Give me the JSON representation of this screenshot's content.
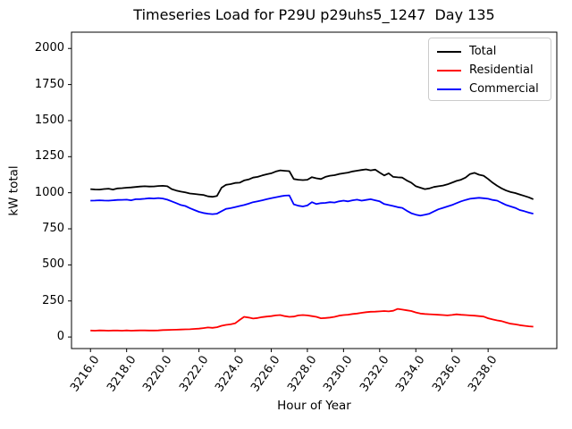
{
  "chart_data": {
    "type": "line",
    "title": "Timeseries Load for P29U p29uhs5_1247  Day 135",
    "xlabel": "Hour of Year",
    "ylabel": "kW total",
    "x_start": 3216.0,
    "x_step": 0.25,
    "xlim": [
      3214.95,
      3241.8
    ],
    "ylim": [
      -80,
      2113
    ],
    "xticks": [
      3216.0,
      3218.0,
      3220.0,
      3222.0,
      3224.0,
      3226.0,
      3228.0,
      3230.0,
      3232.0,
      3234.0,
      3236.0,
      3238.0
    ],
    "yticks": [
      0,
      250,
      500,
      750,
      1000,
      1250,
      1500,
      1750,
      2000
    ],
    "grid": false,
    "legend_position": "upper right",
    "series": [
      {
        "name": "Total",
        "color": "#000000",
        "values": [
          1025,
          1023,
          1022,
          1026,
          1028,
          1022,
          1030,
          1032,
          1035,
          1037,
          1040,
          1043,
          1045,
          1043,
          1044,
          1047,
          1048,
          1045,
          1025,
          1015,
          1008,
          1002,
          995,
          992,
          988,
          985,
          975,
          972,
          978,
          1035,
          1055,
          1060,
          1068,
          1070,
          1085,
          1092,
          1105,
          1110,
          1120,
          1128,
          1135,
          1147,
          1155,
          1152,
          1150,
          1095,
          1090,
          1088,
          1090,
          1108,
          1100,
          1095,
          1110,
          1118,
          1122,
          1130,
          1135,
          1140,
          1148,
          1153,
          1158,
          1162,
          1155,
          1160,
          1140,
          1120,
          1135,
          1110,
          1107,
          1105,
          1085,
          1070,
          1045,
          1035,
          1025,
          1030,
          1040,
          1045,
          1050,
          1058,
          1070,
          1082,
          1090,
          1105,
          1130,
          1138,
          1125,
          1118,
          1095,
          1070,
          1048,
          1030,
          1015,
          1005,
          998,
          988,
          978,
          968,
          955
        ]
      },
      {
        "name": "Residential",
        "color": "#ff0000",
        "values": [
          45,
          44,
          46,
          45,
          44,
          45,
          45,
          44,
          46,
          44,
          45,
          46,
          46,
          45,
          45,
          46,
          48,
          49,
          50,
          51,
          52,
          53,
          54,
          56,
          58,
          62,
          66,
          64,
          68,
          78,
          84,
          88,
          95,
          118,
          140,
          135,
          128,
          132,
          138,
          142,
          145,
          150,
          152,
          145,
          140,
          142,
          150,
          152,
          150,
          145,
          140,
          130,
          132,
          135,
          140,
          148,
          152,
          155,
          160,
          163,
          168,
          172,
          175,
          176,
          178,
          180,
          178,
          182,
          195,
          190,
          185,
          180,
          170,
          163,
          160,
          158,
          156,
          154,
          152,
          150,
          153,
          157,
          154,
          152,
          150,
          148,
          145,
          142,
          130,
          122,
          115,
          110,
          100,
          92,
          88,
          82,
          78,
          74,
          72
        ]
      },
      {
        "name": "Commercial",
        "color": "#0000ff",
        "values": [
          945,
          946,
          948,
          946,
          945,
          948,
          950,
          951,
          952,
          948,
          955,
          956,
          958,
          962,
          960,
          963,
          960,
          952,
          940,
          928,
          915,
          908,
          893,
          880,
          868,
          860,
          855,
          852,
          855,
          872,
          888,
          893,
          900,
          908,
          915,
          924,
          935,
          941,
          948,
          955,
          962,
          968,
          975,
          980,
          982,
          920,
          910,
          905,
          912,
          935,
          922,
          928,
          930,
          935,
          932,
          940,
          945,
          940,
          948,
          952,
          945,
          950,
          955,
          948,
          940,
          922,
          915,
          908,
          900,
          895,
          875,
          858,
          848,
          842,
          848,
          855,
          870,
          885,
          895,
          905,
          915,
          928,
          940,
          950,
          958,
          962,
          965,
          962,
          958,
          950,
          945,
          930,
          915,
          905,
          895,
          880,
          872,
          862,
          855
        ]
      }
    ]
  }
}
